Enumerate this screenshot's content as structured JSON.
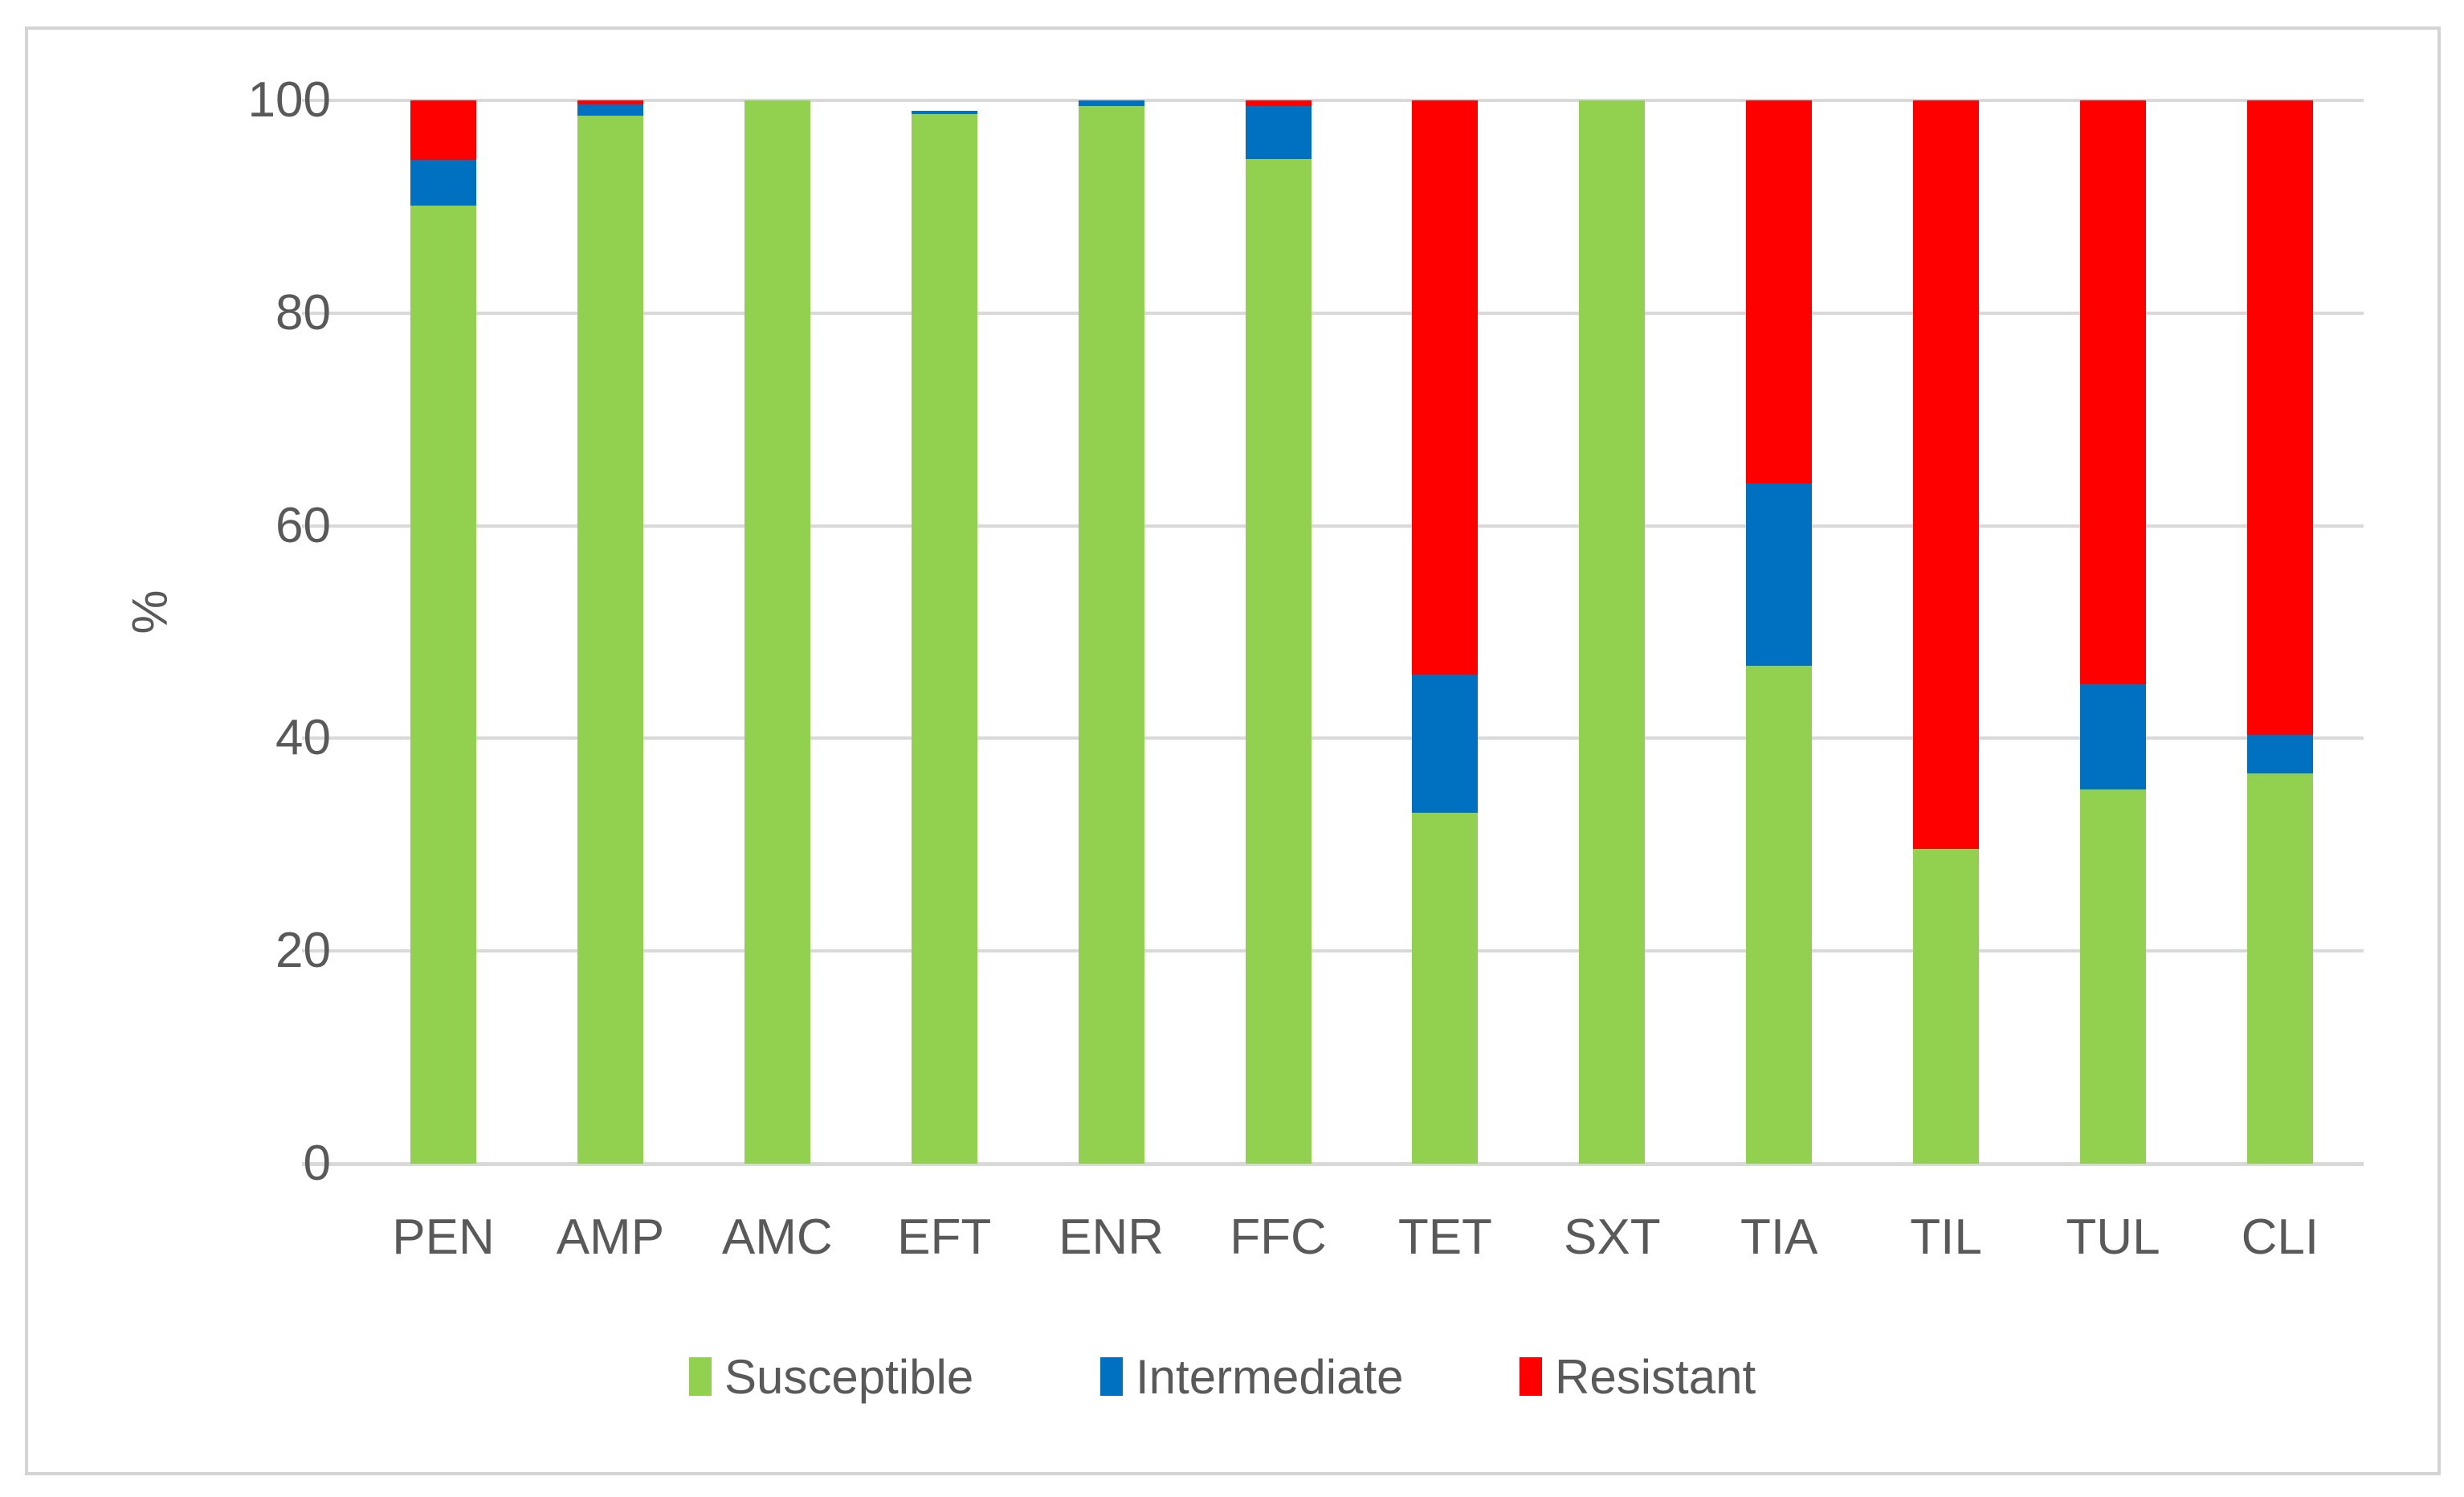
{
  "chart_data": {
    "type": "bar",
    "stacked": true,
    "title": "",
    "xlabel": "",
    "ylabel": "%",
    "ylim": [
      0,
      100
    ],
    "yticks": [
      0,
      20,
      40,
      60,
      80,
      100
    ],
    "grid": true,
    "legend_position": "bottom",
    "categories": [
      "PEN",
      "AMP",
      "AMC",
      "EFT",
      "ENR",
      "FFC",
      "TET",
      "SXT",
      "TIA",
      "TIL",
      "TUL",
      "CLI"
    ],
    "series": [
      {
        "name": "Susceptible",
        "color": "#92D050",
        "values": [
          90.1,
          98.6,
          100,
          98.7,
          99.5,
          94.5,
          33.0,
          100,
          46.8,
          29.6,
          35.2,
          36.7
        ]
      },
      {
        "name": "Intermediate",
        "color": "#0070C0",
        "values": [
          4.3,
          1.0,
          0,
          0.3,
          0.5,
          5.0,
          13.0,
          0,
          17.2,
          0,
          9.9,
          3.6
        ]
      },
      {
        "name": "Resistant",
        "color": "#FF0000",
        "values": [
          5.6,
          0.4,
          0,
          0,
          0,
          0.5,
          54.0,
          0,
          36.0,
          70.4,
          54.9,
          59.7
        ]
      }
    ]
  },
  "legend": {
    "items": [
      {
        "label": "Susceptible",
        "color": "#92D050"
      },
      {
        "label": "Intermediate",
        "color": "#0070C0"
      },
      {
        "label": "Resistant",
        "color": "#FF0000"
      }
    ]
  },
  "axes": {
    "y_title": "%",
    "y_tick_labels": [
      "100",
      "80",
      "60",
      "40",
      "20",
      "0"
    ]
  },
  "colors": {
    "gridline": "#D9D9D9",
    "axis_line": "#D9D9D9",
    "text": "#595959",
    "frame_border": "#D4D4D4",
    "background": "#FFFFFF"
  }
}
